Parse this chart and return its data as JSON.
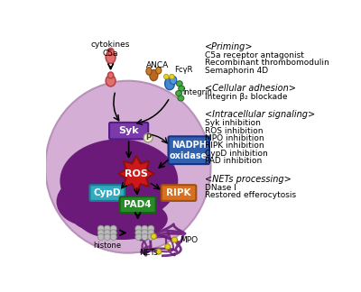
{
  "background_color": "#ffffff",
  "cell_color": "#d4aed4",
  "cell_edge": "#b890b8",
  "nucleus_color": "#6b1a7a",
  "right_text": {
    "priming_header": "<Priming>",
    "priming_items": [
      "C5a receptor antagonist",
      "Recombinant thrombomodulin",
      "Semaphorin 4D"
    ],
    "adhesion_header": "<Cellular adhesion>",
    "adhesion_items": [
      "Integrin β₂ blockade"
    ],
    "signaling_header": "<Intracellular signaling>",
    "signaling_items": [
      "Syk inhibition",
      "ROS inhibition",
      "MPO inhibition",
      "RIPK inhibition",
      "CypD inhibition",
      "PAD inhibition"
    ],
    "nets_header": "<NETs processing>",
    "nets_items": [
      "DNase I",
      "Restored efferocytosis"
    ]
  },
  "labels": {
    "cytokines_c5a": "cytokines\nC5a",
    "anca": "ANCA",
    "fcyr": "FcγR",
    "integrin": "integrin",
    "syk": "Syk",
    "p": "P",
    "nadph": "NADPH\noxidase",
    "ros": "ROS",
    "cypd": "CypD",
    "ripk": "RIPK",
    "pad4": "PAD4",
    "histone": "histone",
    "mpo": "MPO",
    "nets": "NETs"
  },
  "box_colors": {
    "syk": "#7a3aaa",
    "nadph": "#3060b0",
    "ros": "#cc1818",
    "cypd": "#30aac0",
    "ripk": "#d87020",
    "pad4": "#2a8a2a"
  }
}
